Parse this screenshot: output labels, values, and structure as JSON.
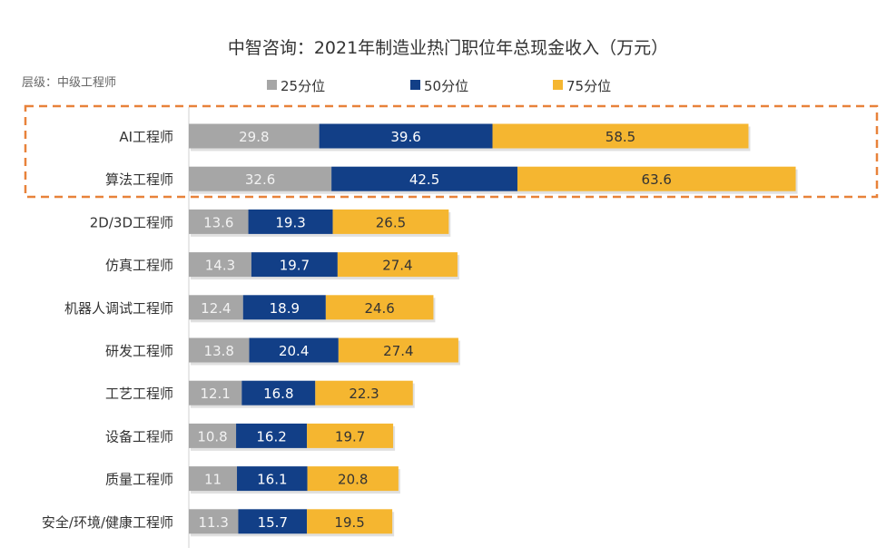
{
  "chart_data": {
    "type": "bar",
    "orientation": "horizontal",
    "stacked": true,
    "title": "中智咨询：2021年制造业热门职位年总现金收入（万元）",
    "subtitle": "层级：中级工程师",
    "categories": [
      "AI工程师",
      "算法工程师",
      "2D/3D工程师",
      "仿真工程师",
      "机器人调试工程师",
      "研发工程师",
      "工艺工程师",
      "设备工程师",
      "质量工程师",
      "安全/环境/健康工程师"
    ],
    "series": [
      {
        "name": "25分位",
        "color": "#a6a6a6",
        "values": [
          29.8,
          32.6,
          13.6,
          14.3,
          12.4,
          13.8,
          12.1,
          10.8,
          11,
          11.3
        ]
      },
      {
        "name": "50分位",
        "color": "#123f87",
        "values": [
          39.6,
          42.5,
          19.3,
          19.7,
          18.9,
          20.4,
          16.8,
          16.2,
          16.1,
          15.7
        ]
      },
      {
        "name": "75分位",
        "color": "#f5b630",
        "values": [
          58.5,
          63.6,
          26.5,
          27.4,
          24.6,
          27.4,
          22.3,
          19.7,
          20.8,
          19.5
        ]
      }
    ],
    "highlighted_categories": [
      "AI工程师",
      "算法工程师"
    ],
    "highlight_color": "#e8823a"
  }
}
